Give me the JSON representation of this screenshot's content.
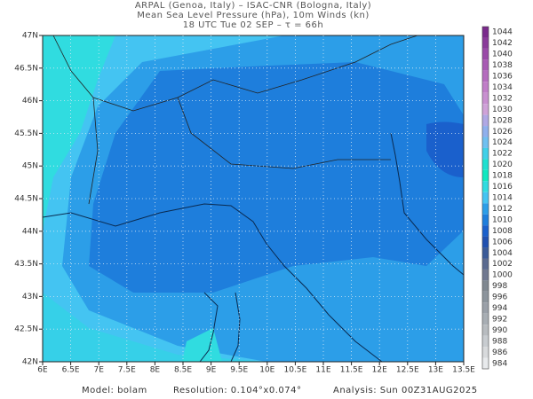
{
  "header": {
    "line1": "ARPAL (Genoa, Italy)  –  ISAC-CNR (Bologna, Italy)",
    "line2": "Mean Sea Level Pressure (hPa), 10m Winds (kn)",
    "line3": "18 UTC Tue 02 SEP  –  τ = 66h"
  },
  "map": {
    "lon_labels": [
      "6E",
      "6.5E",
      "7E",
      "7.5E",
      "8E",
      "8.5E",
      "9E",
      "9.5E",
      "10E",
      "10.5E",
      "11E",
      "11.5E",
      "12E",
      "12.5E",
      "13E",
      "13.5E"
    ],
    "lat_labels": [
      "47N",
      "46.5N",
      "46N",
      "45.5N",
      "45N",
      "44.5N",
      "44N",
      "43.5N",
      "43N",
      "42.5N",
      "42N"
    ]
  },
  "colorbar": {
    "labels": [
      "1044",
      "1042",
      "1040",
      "1038",
      "1036",
      "1034",
      "1032",
      "1030",
      "1028",
      "1026",
      "1024",
      "1022",
      "1020",
      "1018",
      "1016",
      "1014",
      "1012",
      "1010",
      "1008",
      "1006",
      "1004",
      "1002",
      "1000",
      "998",
      "996",
      "994",
      "992",
      "990",
      "988",
      "986",
      "984"
    ],
    "colors": [
      "#7a2a8c",
      "#8a3a9a",
      "#9a4aa8",
      "#a85ab4",
      "#b46cbe",
      "#c07ec8",
      "#c890d0",
      "#cfa2d8",
      "#b0a8e4",
      "#90b0ec",
      "#70c0f0",
      "#40d0e8",
      "#20e0d0",
      "#10e8c0",
      "#30dce0",
      "#44c4f2",
      "#2c9ee8",
      "#1e7edc",
      "#1a60cc",
      "#2050b0",
      "#3a5a98",
      "#5a6a90",
      "#707890",
      "#808890",
      "#8c949c",
      "#9aa0a8",
      "#a8aeb4",
      "#b8bcc0",
      "#c8ccd0",
      "#d8dadc",
      "#e8eaec"
    ]
  },
  "footer": {
    "model": "Model: bolam",
    "resolution": "Resolution: 0.104°x0.074°",
    "analysis": "Analysis: Sun 00Z31AUG2025"
  }
}
